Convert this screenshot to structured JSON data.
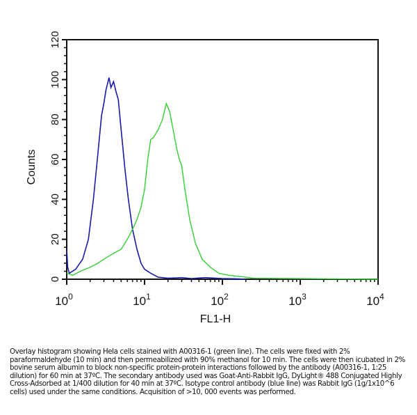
{
  "chart_data": {
    "type": "line",
    "title": "",
    "xlabel": "FL1-H",
    "ylabel": "Counts",
    "xscale": "log",
    "xlim": [
      1,
      10000
    ],
    "ylim": [
      0,
      120
    ],
    "xticks": [
      {
        "base": "10",
        "exp": "0"
      },
      {
        "base": "10",
        "exp": "1"
      },
      {
        "base": "10",
        "exp": "2"
      },
      {
        "base": "10",
        "exp": "3"
      },
      {
        "base": "10",
        "exp": "4"
      }
    ],
    "yticks": [
      "0",
      "20",
      "40",
      "60",
      "80",
      "100",
      "120"
    ],
    "grid": false,
    "series": [
      {
        "color": "#1a1aa8",
        "x": [
          1.0,
          1.03,
          1.08,
          1.3,
          1.6,
          1.9,
          2.2,
          2.5,
          2.8,
          3.0,
          3.2,
          3.5,
          3.7,
          4.0,
          4.3,
          4.6,
          5.0,
          5.6,
          6.2,
          7.0,
          8.0,
          9.0,
          10,
          12,
          15,
          20,
          30,
          40,
          60,
          100,
          150,
          200
        ],
        "y": [
          15,
          6,
          3,
          5,
          10,
          20,
          40,
          62,
          82,
          88,
          95,
          101,
          96,
          99,
          94,
          90,
          75,
          55,
          40,
          25,
          15,
          8,
          5,
          3,
          1,
          0.5,
          0.8,
          0.3,
          0.8,
          0.3,
          0.2,
          0
        ]
      },
      {
        "color": "#33cc33",
        "x": [
          1.0,
          1.2,
          1.5,
          2.0,
          2.5,
          3.0,
          4.0,
          5.0,
          6.0,
          7.0,
          8.0,
          9.0,
          10,
          11,
          12,
          13,
          15,
          17,
          19,
          21,
          23,
          26,
          28,
          30,
          33,
          38,
          45,
          55,
          70,
          90,
          120,
          200,
          250,
          10000
        ],
        "y": [
          3,
          2,
          4,
          6,
          8,
          10,
          13,
          15,
          20,
          25,
          30,
          36,
          45,
          60,
          70,
          71,
          75,
          80,
          88,
          84,
          76,
          65,
          60,
          57,
          45,
          30,
          18,
          10,
          6,
          3,
          2,
          1,
          0.5,
          0
        ]
      }
    ]
  },
  "caption": "Overlay histogram showing Hela cells stained with A00316-1 (green line). The cells were fixed with 2% paraformaldehyde (10 min) and then permeabilized with 90% methanol for 10 min. The cells were then icubated in 2% bovine serum albumin to block non-specific protein-protein interactions followed by the antibody (A00316-1, 1:25 dilution) for 60 min at 37ºC. The secondary antibody used was Goat-Anti-Rabbit IgG, DyLight® 488 Conjugated Highly Cross-Adsorbed at 1/400 dilution for 40 min at 37ºC. Isotype control antibody (blue line) was Rabbit IgG (1g/1x10^6 cells) used under the same conditions. Acquisition of >10, 000 events was performed."
}
